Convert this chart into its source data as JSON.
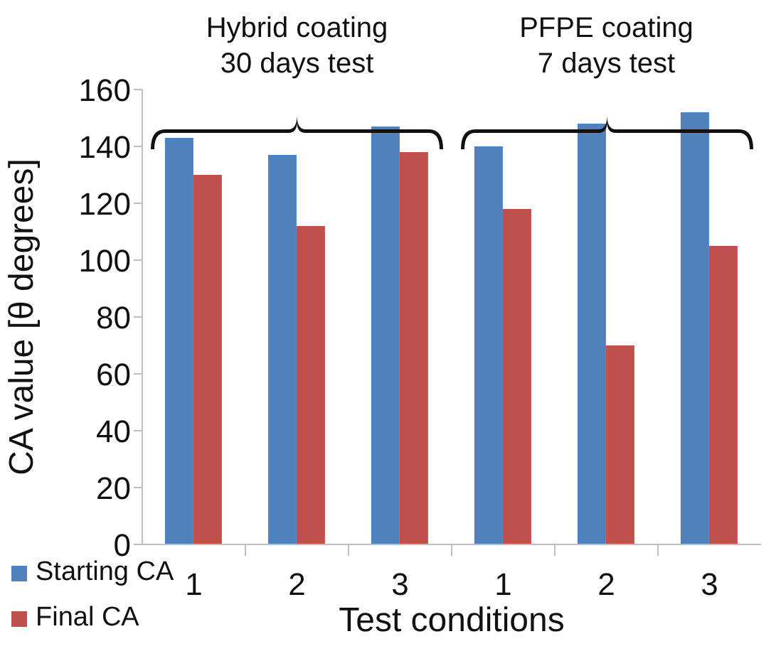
{
  "chart_data": {
    "type": "bar",
    "xlabel": "Test conditions",
    "ylabel": "CA value [θ degrees]",
    "categories": [
      "1",
      "2",
      "3",
      "1",
      "2",
      "3"
    ],
    "series": [
      {
        "name": "Starting CA",
        "color": "#4f81bd",
        "values": [
          143,
          137,
          147,
          140,
          148,
          152
        ]
      },
      {
        "name": "Final CA",
        "color": "#c0504d",
        "values": [
          130,
          112,
          138,
          118,
          70,
          105
        ]
      }
    ],
    "ylim": [
      0,
      160
    ],
    "yticks": [
      0,
      20,
      40,
      60,
      80,
      100,
      120,
      140,
      160
    ],
    "grid": false,
    "legend": "bottom left",
    "annotations": [
      "Hybrid coating\n30 days test",
      "PFPE coating\n7 days test"
    ]
  }
}
